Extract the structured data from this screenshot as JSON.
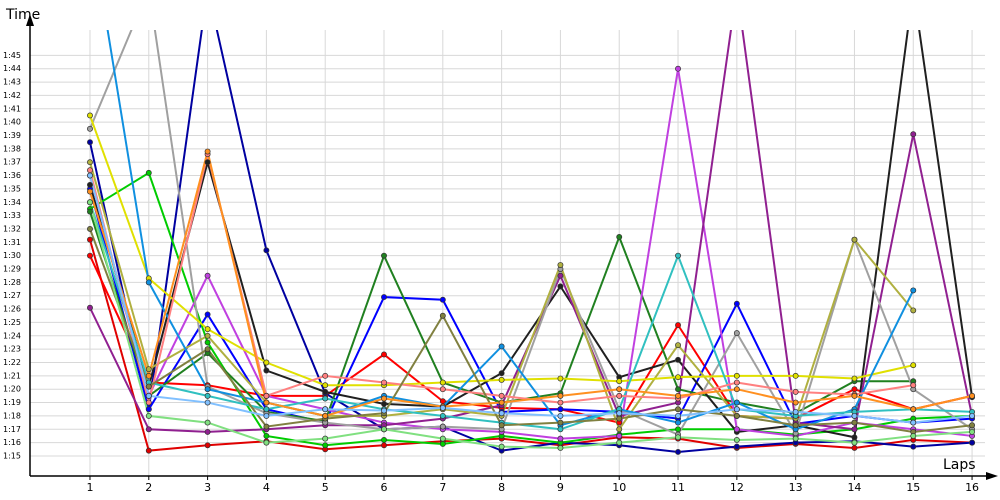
{
  "chart_data": {
    "type": "line",
    "y_label": "Time",
    "x_label": "Laps",
    "x": [
      1,
      2,
      3,
      4,
      5,
      6,
      7,
      8,
      9,
      10,
      11,
      12,
      13,
      14,
      15,
      16
    ],
    "xlim": [
      -0.02,
      16.22
    ],
    "xticks": [
      1,
      2,
      3,
      4,
      5,
      6,
      7,
      8,
      9,
      10,
      11,
      12,
      13,
      14,
      15,
      16
    ],
    "ylim": [
      73.5,
      106.9
    ],
    "yticks": [
      {
        "value": 75,
        "label": "1:15"
      },
      {
        "value": 76,
        "label": "1:16"
      },
      {
        "value": 77,
        "label": "1:17"
      },
      {
        "value": 78,
        "label": "1:18"
      },
      {
        "value": 79,
        "label": "1:19"
      },
      {
        "value": 80,
        "label": "1:20"
      },
      {
        "value": 81,
        "label": "1:21"
      },
      {
        "value": 82,
        "label": "1:22"
      },
      {
        "value": 83,
        "label": "1:23"
      },
      {
        "value": 84,
        "label": "1:24"
      },
      {
        "value": 85,
        "label": "1:25"
      },
      {
        "value": 86,
        "label": "1:26"
      },
      {
        "value": 87,
        "label": "1:27"
      },
      {
        "value": 88,
        "label": "1:28"
      },
      {
        "value": 89,
        "label": "1:29"
      },
      {
        "value": 90,
        "label": "1:30"
      },
      {
        "value": 91,
        "label": "1:31"
      },
      {
        "value": 92,
        "label": "1:32"
      },
      {
        "value": 93,
        "label": "1:33"
      },
      {
        "value": 94,
        "label": "1:34"
      },
      {
        "value": 95,
        "label": "1:35"
      },
      {
        "value": 96,
        "label": "1:36"
      },
      {
        "value": 97,
        "label": "1:37"
      },
      {
        "value": 98,
        "label": "1:38"
      },
      {
        "value": 99,
        "label": "1:39"
      },
      {
        "value": 100,
        "label": "1:40"
      },
      {
        "value": 101,
        "label": "1:41"
      },
      {
        "value": 102,
        "label": "1:42"
      },
      {
        "value": 103,
        "label": "1:43"
      },
      {
        "value": 104,
        "label": "1:44"
      },
      {
        "value": 105,
        "label": "1:45"
      }
    ],
    "grid": true,
    "series": [
      {
        "color": "#e00000",
        "values": [
          91.2,
          75.4,
          75.8,
          76.1,
          75.5,
          75.8,
          76.1,
          76.3,
          75.8,
          76.4,
          76.3,
          75.6,
          75.9,
          75.6,
          76.2,
          76.0
        ]
      },
      {
        "color": "#ff0000",
        "values": [
          90.0,
          80.5,
          80.3,
          79.5,
          79.5,
          82.6,
          79.1,
          78.6,
          78.5,
          77.5,
          84.8,
          78.0,
          77.8,
          80.0,
          78.5,
          79.5
        ]
      },
      {
        "color": "#0000a0",
        "values": [
          98.5,
          78.5,
          110.0,
          90.4,
          79.7,
          77.0,
          77.2,
          75.4,
          76.0,
          75.8,
          75.3,
          75.7,
          76.0,
          76.1,
          75.7,
          76.0
        ]
      },
      {
        "color": "#0000ff",
        "values": [
          95.0,
          78.5,
          85.6,
          78.5,
          77.5,
          86.9,
          86.7,
          78.3,
          78.5,
          78.3,
          77.8,
          86.4,
          77.4,
          78.0,
          77.5,
          77.8
        ]
      },
      {
        "color": "#00cc00",
        "values": [
          93.5,
          96.2,
          83.5,
          76.5,
          75.8,
          76.2,
          75.9,
          76.5,
          76.0,
          76.6,
          77.0,
          77.0,
          76.6,
          77.0,
          77.8,
          78.0
        ]
      },
      {
        "color": "#208020",
        "values": [
          93.3,
          79.5,
          82.7,
          78.3,
          77.6,
          90.0,
          80.5,
          79.0,
          79.7,
          91.4,
          80.0,
          79.0,
          78.2,
          80.6,
          80.6,
          null
        ]
      },
      {
        "color": "#202020",
        "values": [
          95.3,
          80.2,
          97.0,
          81.4,
          79.8,
          78.9,
          78.7,
          81.2,
          87.7,
          80.9,
          82.2,
          76.8,
          77.3,
          76.4,
          110.0,
          79.4
        ]
      },
      {
        "color": "#c040e0",
        "values": [
          96.0,
          79.5,
          88.5,
          79.5,
          78.5,
          77.5,
          77.0,
          76.8,
          76.3,
          76.5,
          104.0,
          77.0,
          76.5,
          77.5,
          77.0,
          76.5
        ]
      },
      {
        "color": "#902090",
        "values": [
          86.1,
          77.0,
          76.8,
          77.0,
          77.3,
          77.3,
          77.8,
          78.8,
          88.5,
          78.0,
          79.0,
          110.0,
          77.5,
          77.0,
          99.1,
          78.0
        ]
      },
      {
        "color": "#a0a0a0",
        "values": [
          99.5,
          110.0,
          80.2,
          78.2,
          77.5,
          77.0,
          77.2,
          77.0,
          89.0,
          78.5,
          76.6,
          84.2,
          76.7,
          91.2,
          80.0,
          77.0
        ]
      },
      {
        "color": "#b0b040",
        "values": [
          97.0,
          81.5,
          84.0,
          79.0,
          78.0,
          78.0,
          78.5,
          78.0,
          89.3,
          77.0,
          83.3,
          78.0,
          77.8,
          91.2,
          85.9,
          null
        ]
      },
      {
        "color": "#e0e000",
        "values": [
          100.5,
          88.3,
          84.5,
          82.0,
          80.3,
          80.3,
          80.5,
          80.7,
          80.8,
          80.6,
          80.9,
          81.0,
          81.0,
          80.8,
          81.8,
          null
        ]
      },
      {
        "color": "#1090e0",
        "values": [
          115.0,
          88.0,
          80.0,
          79.0,
          78.0,
          79.5,
          78.7,
          83.2,
          77.3,
          78.5,
          77.5,
          79.0,
          77.0,
          78.5,
          87.4,
          null
        ]
      },
      {
        "color": "#30c0c0",
        "values": [
          94.0,
          80.5,
          79.5,
          78.5,
          79.3,
          78.5,
          78.0,
          77.5,
          77.0,
          78.5,
          90.0,
          78.5,
          78.0,
          78.3,
          78.5,
          78.3
        ]
      },
      {
        "color": "#ff8080",
        "values": [
          96.4,
          79.0,
          97.6,
          79.5,
          81.0,
          80.5,
          80.0,
          79.5,
          79.0,
          79.5,
          79.3,
          80.5,
          79.8,
          79.6,
          80.3,
          null
        ]
      },
      {
        "color": "#808040",
        "values": [
          92.0,
          80.2,
          83.0,
          77.2,
          77.8,
          78.2,
          85.5,
          77.3,
          77.5,
          77.8,
          78.5,
          78.0,
          77.3,
          77.5,
          76.8,
          77.3
        ]
      },
      {
        "color": "#80e080",
        "values": [
          94.0,
          78.0,
          77.5,
          76.0,
          76.3,
          77.0,
          76.3,
          75.7,
          75.6,
          76.0,
          76.4,
          76.2,
          76.3,
          76.0,
          76.5,
          76.8
        ]
      },
      {
        "color": "#ff9020",
        "values": [
          94.8,
          81.0,
          97.8,
          79.0,
          78.0,
          79.3,
          78.7,
          79.0,
          79.5,
          80.0,
          79.5,
          80.0,
          79.0,
          79.5,
          78.5,
          79.5
        ]
      },
      {
        "color": "#80c0ff",
        "values": [
          96.0,
          79.5,
          79.0,
          78.0,
          78.5,
          78.4,
          78.6,
          78.2,
          78.0,
          78.2,
          78.0,
          78.5,
          78.3,
          78.0,
          77.5,
          78.0
        ]
      }
    ]
  }
}
